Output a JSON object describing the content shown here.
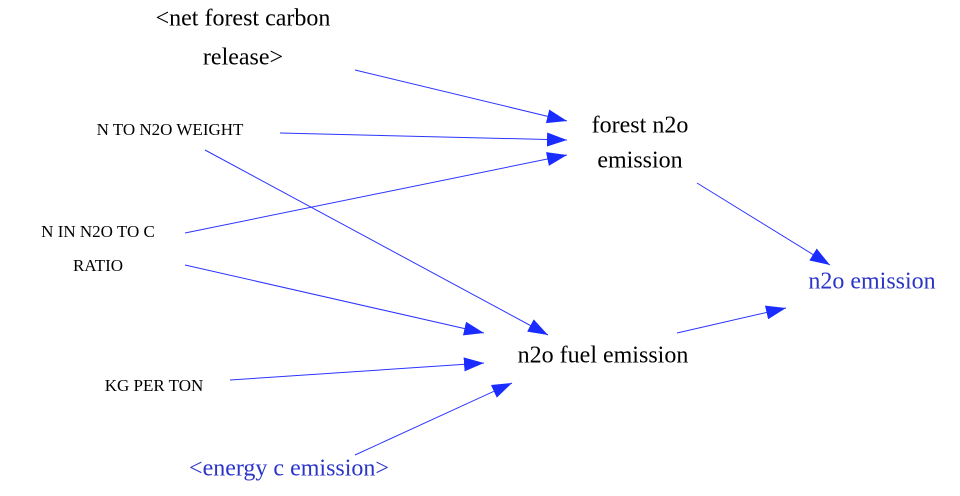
{
  "nodes": [
    {
      "lines": [
        "<net forest carbon",
        "release>"
      ]
    },
    {
      "lines": [
        "N TO N2O WEIGHT"
      ]
    },
    {
      "lines": [
        "N IN N2O TO C",
        "RATIO"
      ]
    },
    {
      "lines": [
        "KG PER TON"
      ]
    },
    {
      "lines": [
        "<energy c emission>"
      ]
    },
    {
      "lines": [
        "forest n2o",
        "emission"
      ]
    },
    {
      "lines": [
        "n2o fuel emission"
      ]
    },
    {
      "lines": [
        "n2o emission"
      ]
    }
  ]
}
